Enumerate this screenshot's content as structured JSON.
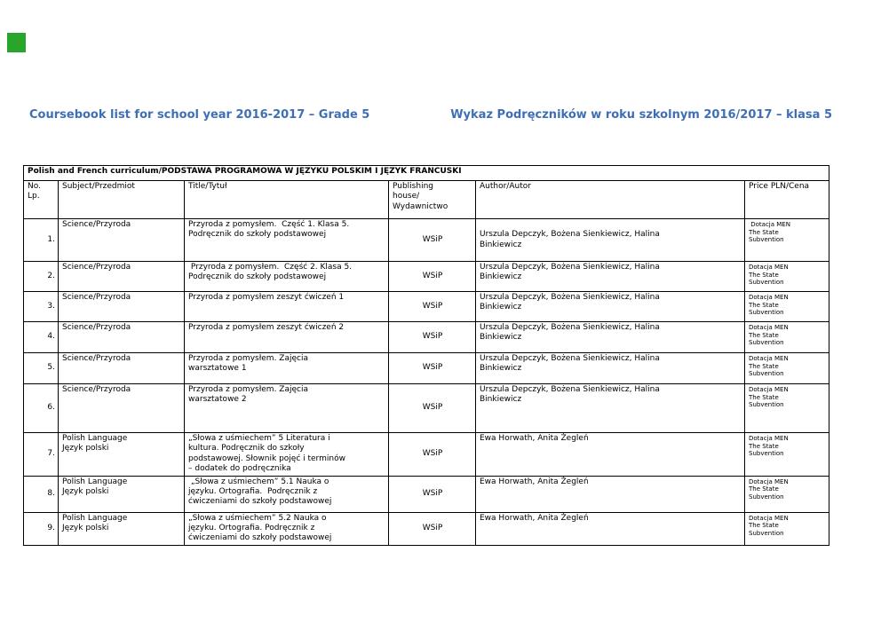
{
  "marker": {
    "color": "#27A62B"
  },
  "headings": {
    "color": "#3E6FB5",
    "left": "Coursebook list for school year 2016-2017 – Grade 5",
    "right": "Wykaz Podręczników w roku szkolnym 2016/2017 – klasa 5"
  },
  "table": {
    "band_title": "Polish and French curriculum/PODSTAWA PROGRAMOWA W JĘZYKU POLSKIM I JĘZYK FRANCUSKI",
    "columns": [
      "No.\nLp.",
      "Subject/Przedmiot",
      "Title/Tytuł",
      "Publishing\nhouse/\nWydawnictwo",
      "Author/Autor",
      "Price PLN/Cena"
    ],
    "rows": [
      {
        "no": "1.",
        "subject": "Science/Przyroda",
        "title": "Przyroda z pomysłem.  Część 1. Klasa 5.\nPodręcznik do szkoły podstawowej",
        "publisher": "WSiP",
        "author": "Urszula Depczyk, Bożena Sienkiewicz, Halina\nBinkiewicz",
        "price": " Dotacja MEN\nThe State\nSubvention"
      },
      {
        "no": "2.",
        "subject": "Science/Przyroda",
        "title": " Przyroda z pomysłem.  Część 2. Klasa 5.\nPodręcznik do szkoły podstawowej",
        "publisher": "WSiP",
        "author": "Urszula Depczyk, Bożena Sienkiewicz, Halina\nBinkiewicz",
        "price": "Dotacja MEN\nThe State\nSubvention"
      },
      {
        "no": "3.",
        "subject": "Science/Przyroda",
        "title": "Przyroda z pomysłem zeszyt ćwiczeń 1",
        "publisher": "WSiP",
        "author": "Urszula Depczyk, Bożena Sienkiewicz, Halina\nBinkiewicz",
        "price": "Dotacja MEN\nThe State\nSubvention"
      },
      {
        "no": "4.",
        "subject": "Science/Przyroda",
        "title": "Przyroda z pomysłem zeszyt ćwiczeń 2",
        "publisher": "WSiP",
        "author": "Urszula Depczyk, Bożena Sienkiewicz, Halina\nBinkiewicz",
        "price": "Dotacja MEN\nThe State\nSubvention"
      },
      {
        "no": "5.",
        "subject": "Science/Przyroda",
        "title": "Przyroda z pomysłem. Zajęcia\nwarsztatowe 1",
        "publisher": "WSiP",
        "author": "Urszula Depczyk, Bożena Sienkiewicz, Halina\nBinkiewicz",
        "price": "Dotacja MEN\nThe State\nSubvention"
      },
      {
        "no": "6.",
        "subject": "Science/Przyroda",
        "title": "Przyroda z pomysłem. Zajęcia\nwarsztatowe 2",
        "publisher": "WSiP",
        "author": "Urszula Depczyk, Bożena Sienkiewicz, Halina\nBinkiewicz",
        "price": "Dotacja MEN\nThe State\nSubvention"
      },
      {
        "no": "7.",
        "subject": "Polish Language\nJęzyk polski",
        "title": "„Słowa z uśmiechem” 5 Literatura i\nkultura. Podręcznik do szkoły\npodstawowej. Słownik pojęć i terminów\n– dodatek do podręcznika",
        "publisher": "WSiP",
        "author": "Ewa Horwath, Anita Żegleń",
        "price": "Dotacja MEN\nThe State\nSubvention"
      },
      {
        "no": "8.",
        "subject": "Polish Language\nJęzyk polski",
        "title": " „Słowa z uśmiechem” 5.1 Nauka o\njęzyku. Ortografia.  Podręcznik z\nćwiczeniami do szkoły podstawowej",
        "publisher": "WSiP",
        "author": "Ewa Horwath, Anita Żegleń",
        "price": "Dotacja MEN\nThe State\nSubvention"
      },
      {
        "no": "9.",
        "subject": "Polish Language\nJęzyk polski",
        "title": "„Słowa z uśmiechem” 5.2 Nauka o\njęzyku. Ortografia. Podręcznik z\nćwiczeniami do szkoły podstawowej",
        "publisher": "WSiP",
        "author": "Ewa Horwath, Anita Żegleń",
        "price": "Dotacja MEN\nThe State\nSubvention"
      }
    ]
  }
}
